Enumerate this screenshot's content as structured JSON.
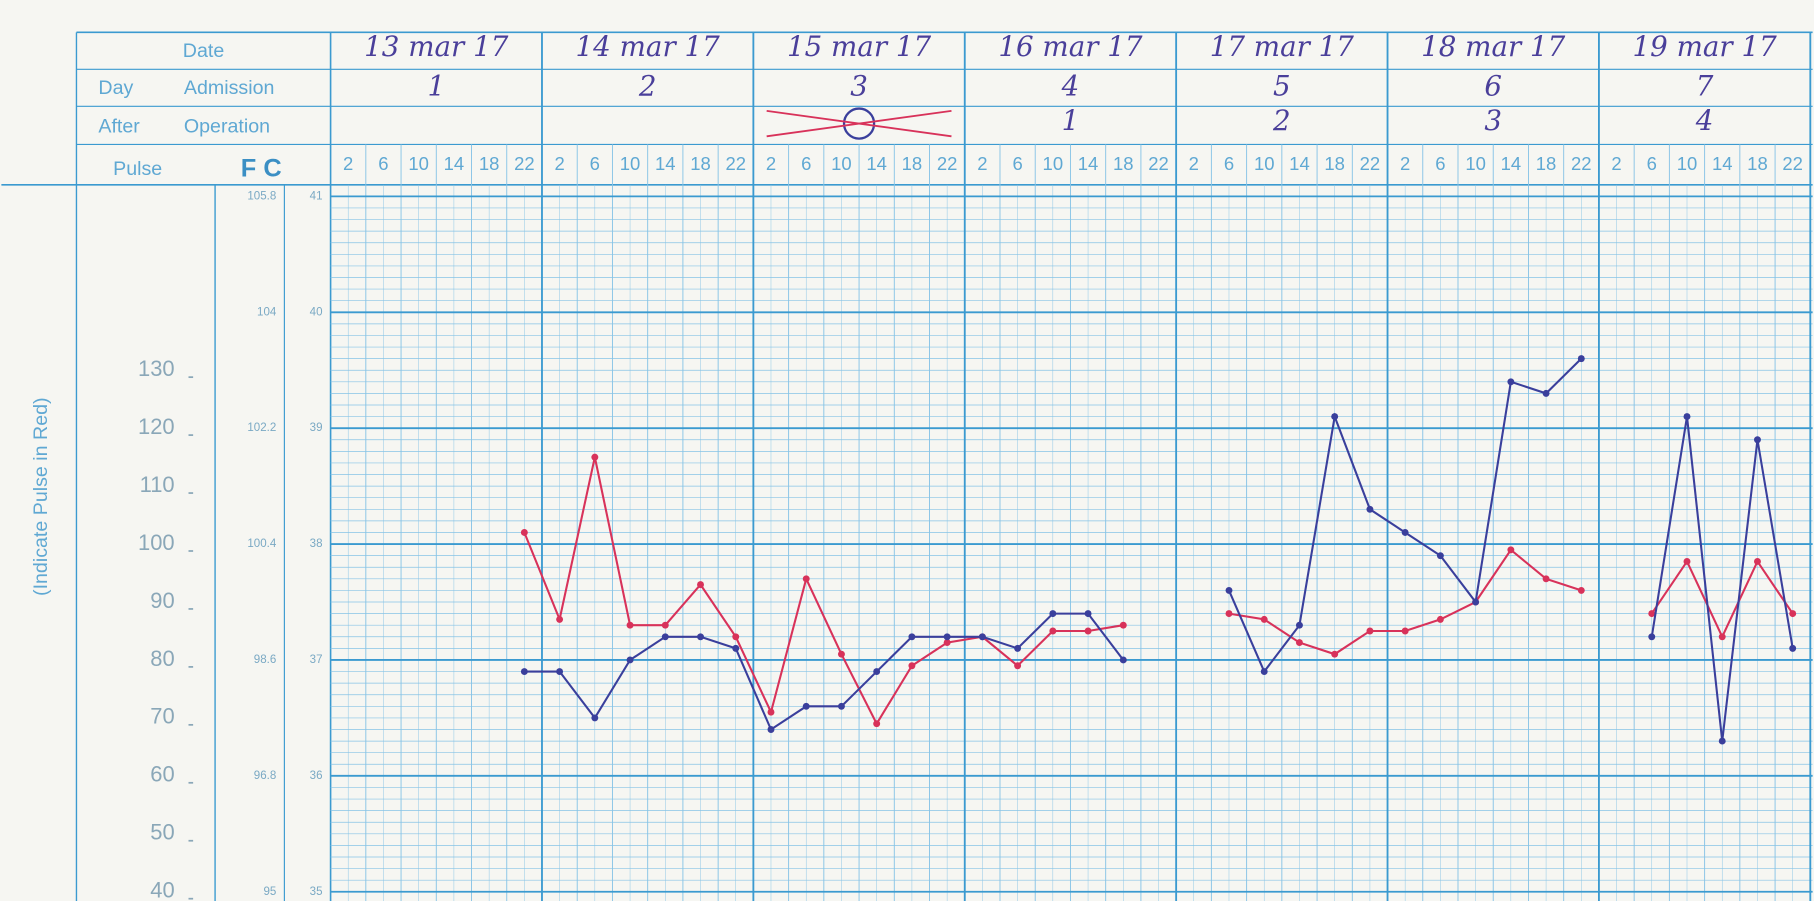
{
  "header": {
    "date_label": "Date",
    "day": "Day",
    "admission": "Admission",
    "after": "After",
    "operation": "Operation",
    "pulse": "Pulse",
    "fc": "F C",
    "note": "(Indicate Pulse in Red)"
  },
  "days": {
    "dates": [
      "13 mar 17",
      "14 mar 17",
      "15 mar 17",
      "16 mar 17",
      "17 mar 17",
      "18 mar 17",
      "19 mar 17"
    ],
    "admission": [
      "1",
      "2",
      "3",
      "4",
      "5",
      "6",
      "7"
    ],
    "operation": [
      null,
      null,
      null,
      "1",
      "2",
      "3",
      "4"
    ]
  },
  "chart_data": {
    "type": "line",
    "categories": [
      "2",
      "6",
      "10",
      "14",
      "18",
      "22",
      "2",
      "6",
      "10",
      "14",
      "18",
      "22",
      "2",
      "6",
      "10",
      "14",
      "18",
      "22",
      "2",
      "6",
      "10",
      "14",
      "18",
      "22",
      "2",
      "6",
      "10",
      "14",
      "18",
      "22",
      "2",
      "6",
      "10",
      "14",
      "18",
      "22",
      "2",
      "6",
      "10",
      "14",
      "18",
      "22"
    ],
    "ylim": [
      40,
      160
    ],
    "yticks": [
      40,
      50,
      60,
      70,
      80,
      90,
      100,
      110,
      120,
      130
    ],
    "y2lim": [
      35,
      41
    ],
    "y2ticks": [
      35,
      36,
      37,
      38,
      39,
      40,
      41
    ],
    "y3lim": [
      95,
      105.8
    ],
    "y3ticks": [
      95,
      96.8,
      98.6,
      100.4,
      102.2,
      104,
      105.8
    ],
    "series": [
      {
        "color": "#d8325a",
        "values": [
          null,
          null,
          null,
          null,
          null,
          102,
          87,
          115,
          86,
          86,
          93,
          84,
          71,
          94,
          81,
          69,
          79,
          83,
          84,
          79,
          85,
          85,
          86,
          null,
          null,
          88,
          87,
          83,
          81,
          85,
          85,
          87,
          90,
          99,
          94,
          92,
          null,
          88,
          97,
          84,
          97,
          88
        ]
      },
      {
        "color": "#3a3f9c",
        "axis": "y2",
        "values": [
          null,
          null,
          null,
          null,
          null,
          36.9,
          36.9,
          36.5,
          37.0,
          37.2,
          37.2,
          37.1,
          36.4,
          36.6,
          36.6,
          36.9,
          37.2,
          37.2,
          37.2,
          37.1,
          37.4,
          37.4,
          37.0,
          null,
          null,
          37.6,
          36.9,
          37.3,
          39.1,
          38.3,
          38.1,
          37.9,
          37.5,
          39.4,
          39.3,
          39.6,
          null,
          37.2,
          39.1,
          36.3,
          38.9,
          37.1
        ]
      }
    ]
  }
}
